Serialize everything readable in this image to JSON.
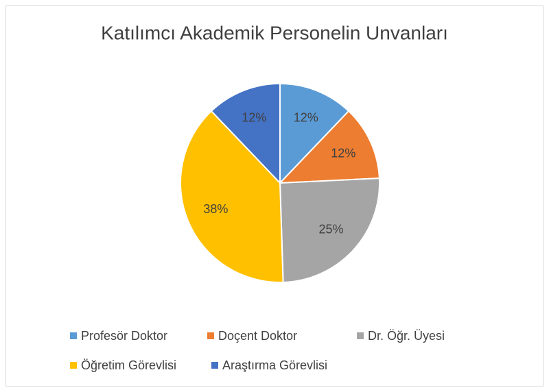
{
  "chart_data": {
    "type": "pie",
    "title": "Katılımcı Akademik Personelin Unvanları",
    "categories": [
      "Profesör Doktor",
      "Doçent Doktor",
      "Dr. Öğr. Üyesi",
      "Öğretim Görevlisi",
      "Araştırma Görevlisi"
    ],
    "values": [
      12,
      12,
      25,
      38,
      12
    ],
    "value_labels": [
      "12%",
      "12%",
      "25%",
      "38%",
      "12%"
    ],
    "colors": [
      "#5b9bd5",
      "#ed7d31",
      "#a5a5a5",
      "#ffc000",
      "#4472c4"
    ],
    "legend": "bottom"
  }
}
